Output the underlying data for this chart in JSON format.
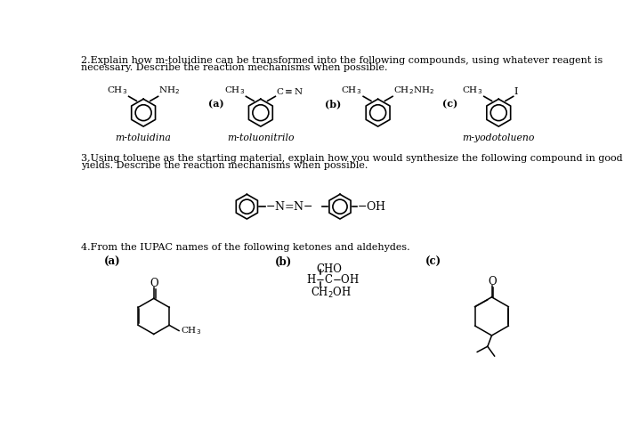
{
  "bg_color": "#ffffff",
  "fig_width": 7.0,
  "fig_height": 4.91,
  "dpi": 100,
  "q2_text_l1": "2.Explain how m-toluidine can be transformed into the following compounds, using whatever reagent is",
  "q2_text_l2": "necessary. Describe the reaction mechanisms when possible.",
  "q3_text_l1": "3.Using toluene as the starting material, explain how you would synthesize the following compound in good",
  "q3_text_l2": "yields. Describe the reaction mechanisms when possible.",
  "q4_text": "4.From the IUPAC names of the following ketones and aldehydes.",
  "mtoluidina_label": "m-toluidina",
  "mtoluonitrilo_label": "m-toluonitrilo",
  "myodotolueno_label": "m-yodotolueno",
  "text_color": "#000000",
  "q4_a_label": "(a)",
  "q4_b_label": "(b)",
  "q4_c_label": "(c)",
  "cho_line1": "CHO",
  "cho_line2": "H─C─OH",
  "cho_line3": "CH₂OH"
}
